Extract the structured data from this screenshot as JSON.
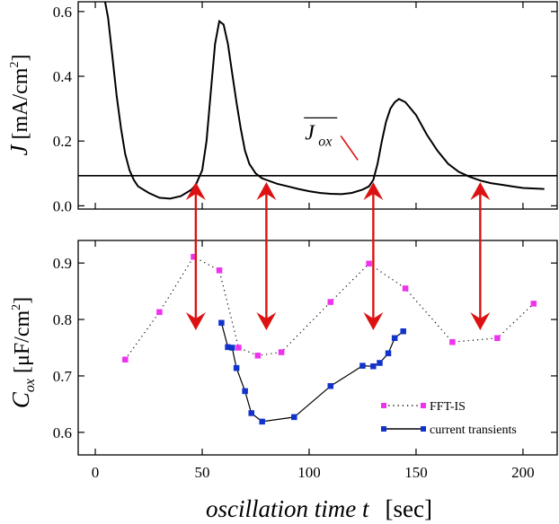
{
  "chart_data": [
    {
      "type": "line",
      "panel": "top",
      "ylabel_symbol": "J",
      "ylabel_unit": "[mA/cm",
      "ylabel_exp": "2",
      "ylabel_close": "]",
      "xlim": [
        -8,
        216
      ],
      "ylim": [
        -0.01,
        0.63
      ],
      "yticks": [
        "0.0",
        "0.2",
        "0.4",
        "0.6"
      ],
      "grid": false,
      "series": [
        {
          "x": [
            4,
            6,
            8,
            10,
            12,
            14,
            16,
            18,
            20,
            25,
            30,
            35,
            40,
            45,
            47,
            50,
            52,
            54,
            56,
            58,
            60,
            62,
            64,
            66,
            68,
            70,
            72,
            75,
            78,
            80,
            85,
            90,
            95,
            100,
            105,
            110,
            115,
            120,
            125,
            128,
            130,
            132,
            134,
            136,
            138,
            140,
            142,
            145,
            150,
            155,
            160,
            165,
            170,
            175,
            180,
            185,
            190,
            195,
            200,
            210
          ],
          "y": [
            0.65,
            0.58,
            0.46,
            0.34,
            0.24,
            0.16,
            0.11,
            0.08,
            0.06,
            0.04,
            0.025,
            0.022,
            0.03,
            0.05,
            0.065,
            0.11,
            0.2,
            0.35,
            0.5,
            0.57,
            0.56,
            0.5,
            0.41,
            0.32,
            0.24,
            0.17,
            0.13,
            0.1,
            0.085,
            0.08,
            0.068,
            0.06,
            0.052,
            0.045,
            0.04,
            0.037,
            0.036,
            0.04,
            0.05,
            0.06,
            0.08,
            0.13,
            0.2,
            0.26,
            0.3,
            0.32,
            0.33,
            0.32,
            0.28,
            0.22,
            0.17,
            0.13,
            0.105,
            0.09,
            0.078,
            0.07,
            0.065,
            0.06,
            0.055,
            0.052
          ]
        }
      ],
      "reference_line_y": 0.093,
      "annotation": {
        "base": "J",
        "sub": "ox",
        "x": 98,
        "y": 0.205
      }
    },
    {
      "type": "line",
      "panel": "bottom",
      "xlabel": "oscillation time t",
      "xlabel_unit": "[sec]",
      "ylabel_main": "C",
      "ylabel_sub": "ox",
      "ylabel_unit_pre": "[",
      "ylabel_mu": "μ",
      "ylabel_unit_post": "F/cm",
      "ylabel_exp": "2",
      "ylabel_close": "]",
      "xlim": [
        -8,
        216
      ],
      "ylim": [
        0.56,
        0.94
      ],
      "xticks": [
        "0",
        "50",
        "100",
        "150",
        "200"
      ],
      "yticks": [
        "0.6",
        "0.7",
        "0.8",
        "0.9"
      ],
      "grid": false,
      "legend_position": "bottom-right",
      "series": [
        {
          "name": "FFT-IS",
          "color": "#ee33ee",
          "style": "dotted",
          "x": [
            14,
            30,
            46,
            58,
            67,
            76,
            87,
            110,
            128,
            145,
            167,
            188,
            205
          ],
          "y": [
            0.729,
            0.813,
            0.911,
            0.887,
            0.75,
            0.736,
            0.742,
            0.831,
            0.899,
            0.855,
            0.76,
            0.767,
            0.828
          ]
        },
        {
          "name": "current transients",
          "color": "#1133cc",
          "style": "solid",
          "x": [
            59,
            62,
            64,
            66,
            70,
            73,
            78,
            93,
            110,
            125,
            130,
            133,
            137,
            140,
            144
          ],
          "y": [
            0.794,
            0.751,
            0.75,
            0.714,
            0.673,
            0.634,
            0.619,
            0.627,
            0.682,
            0.718,
            0.717,
            0.723,
            0.74,
            0.767,
            0.779
          ]
        }
      ]
    }
  ],
  "markers": {
    "arrow_x": [
      47,
      80,
      130,
      180
    ],
    "arrow_color": "#dd1111"
  }
}
